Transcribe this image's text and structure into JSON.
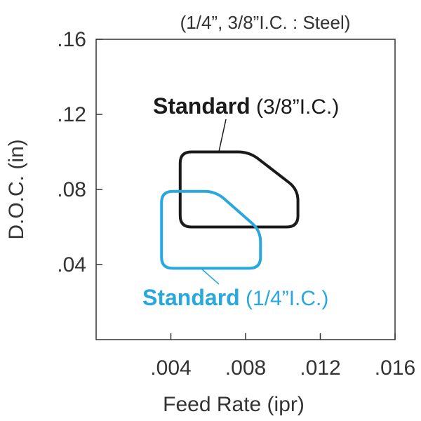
{
  "chart_data": {
    "type": "area",
    "title": "(1/4”, 3/8”I.C. : Steel)",
    "xlabel": "Feed Rate (ipr)",
    "ylabel": "D.O.C. (in)",
    "xlim": [
      0,
      0.016
    ],
    "ylim": [
      0,
      0.16
    ],
    "x_ticks": [
      ".004",
      ".008",
      ".012",
      ".016"
    ],
    "y_ticks": [
      ".16",
      ".12",
      ".08",
      ".04"
    ],
    "grid": false,
    "series": [
      {
        "name_bold": "Standard",
        "name_rest": " (3/8”I.C.)",
        "color": "#1a1a1a",
        "polygon": [
          [
            0.0045,
            0.06
          ],
          [
            0.0045,
            0.1
          ],
          [
            0.0082,
            0.1
          ],
          [
            0.0108,
            0.08
          ],
          [
            0.0108,
            0.06
          ]
        ]
      },
      {
        "name_bold": "Standard",
        "name_rest": " (1/4”I.C.)",
        "color": "#29a8dd",
        "polygon": [
          [
            0.0035,
            0.038
          ],
          [
            0.0035,
            0.079
          ],
          [
            0.0064,
            0.079
          ],
          [
            0.0088,
            0.058
          ],
          [
            0.0088,
            0.038
          ]
        ]
      }
    ]
  }
}
